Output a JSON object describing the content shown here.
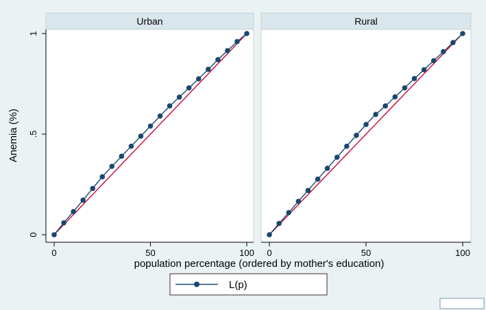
{
  "chart_data": {
    "type": "line",
    "ylabel": "Anemia (%)",
    "xlabel": "population percentage (ordered by mother's education)",
    "xlim": [
      0,
      100
    ],
    "ylim": [
      0,
      1
    ],
    "x_ticks": [
      0,
      50,
      100
    ],
    "x_tick_labels": [
      "0",
      "50",
      "100"
    ],
    "y_ticks": [
      0,
      0.5,
      1
    ],
    "y_tick_labels": [
      "0",
      ".5",
      "1"
    ],
    "grid": false,
    "legend": {
      "position": "bottom",
      "entries": [
        "L(p)"
      ]
    },
    "colors": {
      "series": "#1a476f",
      "equality_line": "#c10534",
      "panel_header": "#d9e6eb",
      "background": "#eaf2f3"
    },
    "panels": [
      {
        "title": "Urban",
        "x": [
          0,
          5,
          10,
          15,
          20,
          25,
          30,
          35,
          40,
          45,
          50,
          55,
          60,
          65,
          70,
          75,
          80,
          85,
          90,
          95,
          100
        ],
        "series": [
          {
            "name": "L(p)",
            "values": [
              0,
              0.059,
              0.115,
              0.172,
              0.23,
              0.288,
              0.34,
              0.39,
              0.44,
              0.49,
              0.54,
              0.59,
              0.64,
              0.684,
              0.73,
              0.775,
              0.822,
              0.87,
              0.915,
              0.96,
              1
            ]
          },
          {
            "values": [
              0,
              0.05,
              0.1,
              0.15,
              0.2,
              0.25,
              0.3,
              0.35,
              0.4,
              0.45,
              0.5,
              0.55,
              0.6,
              0.65,
              0.7,
              0.75,
              0.8,
              0.85,
              0.9,
              0.95,
              1
            ]
          }
        ]
      },
      {
        "title": "Rural",
        "x": [
          0,
          5,
          10,
          15,
          20,
          25,
          30,
          35,
          40,
          45,
          50,
          55,
          60,
          65,
          70,
          75,
          80,
          85,
          90,
          95,
          100
        ],
        "series": [
          {
            "name": "L(p)",
            "values": [
              0,
              0.056,
              0.11,
              0.166,
              0.22,
              0.276,
              0.33,
              0.385,
              0.44,
              0.494,
              0.548,
              0.598,
              0.64,
              0.685,
              0.73,
              0.776,
              0.82,
              0.865,
              0.91,
              0.955,
              1
            ]
          },
          {
            "values": [
              0,
              0.05,
              0.1,
              0.15,
              0.2,
              0.25,
              0.3,
              0.35,
              0.4,
              0.45,
              0.5,
              0.55,
              0.6,
              0.65,
              0.7,
              0.75,
              0.8,
              0.85,
              0.9,
              0.95,
              1
            ]
          }
        ]
      }
    ]
  }
}
